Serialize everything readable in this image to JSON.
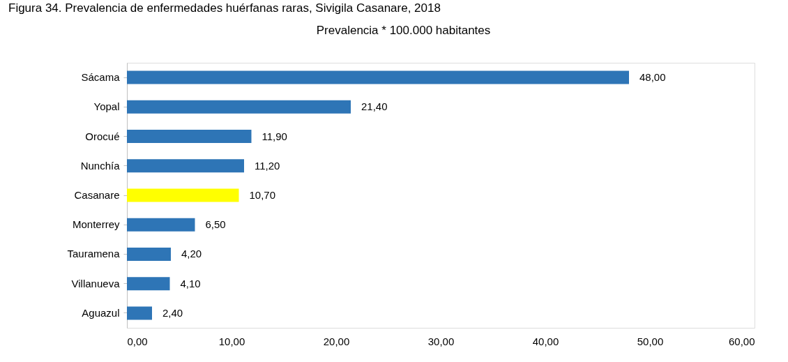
{
  "chart_data": {
    "type": "bar",
    "orientation": "horizontal",
    "title": "Prevalencia * 100.000 habitantes",
    "annotations": [
      "Figura 34. Prevalencia de enfermedades huérfanas raras, Sivigila Casanare, 2018"
    ],
    "categories": [
      "Sácama",
      "Yopal",
      "Orocué",
      "Nunchía",
      "Casanare",
      "Monterrey",
      "Tauramena",
      "Villanueva",
      "Aguazul"
    ],
    "values": [
      48.0,
      21.4,
      11.9,
      11.2,
      10.7,
      6.5,
      4.2,
      4.1,
      2.4
    ],
    "value_labels": [
      "48,00",
      "21,40",
      "11,90",
      "11,20",
      "10,70",
      "6,50",
      "4,20",
      "4,10",
      "2,40"
    ],
    "colors": [
      "#2e75b6",
      "#2e75b6",
      "#2e75b6",
      "#2e75b6",
      "#ffff00",
      "#2e75b6",
      "#2e75b6",
      "#2e75b6",
      "#2e75b6"
    ],
    "xlim": [
      0,
      60
    ],
    "xticks": [
      {
        "value": 0,
        "label": "0,00"
      },
      {
        "value": 10,
        "label": "10,00"
      },
      {
        "value": 20,
        "label": "20,00"
      },
      {
        "value": 30,
        "label": "30,00"
      },
      {
        "value": 40,
        "label": "40,00"
      },
      {
        "value": 50,
        "label": "50,00"
      },
      {
        "value": 60,
        "label": "60,00"
      }
    ],
    "grid": false
  }
}
